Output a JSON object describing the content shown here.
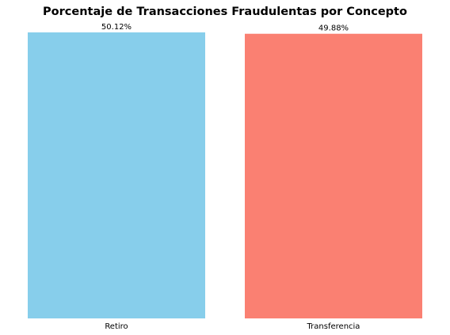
{
  "chart_data": {
    "type": "bar",
    "title": "Porcentaje de Transacciones Fraudulentas por Concepto",
    "categories": [
      "Retiro",
      "Transferencia"
    ],
    "values": [
      50.12,
      49.88
    ],
    "data_labels": [
      "50.12%",
      "49.88%"
    ],
    "colors": [
      "#87CEEB",
      "#FA8072"
    ],
    "xlabel": "",
    "ylabel": "",
    "ylim": [
      0,
      50.12
    ],
    "grid": false,
    "show_y_axis": false
  }
}
